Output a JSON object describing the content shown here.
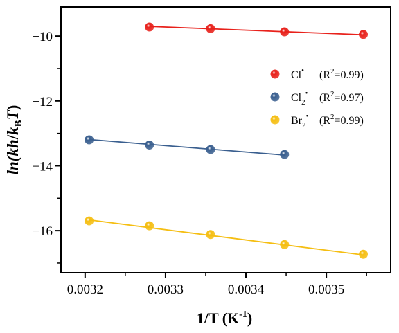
{
  "chart_data": {
    "type": "scatter",
    "xlabel": "1/T (K",
    "xlabel_sup": "-1",
    "xlabel_close": ")",
    "ylabel_parts": {
      "ln": "ln(",
      "kh": "kh",
      "slash": "/",
      "k": "k",
      "k_sub": "B",
      "T": "T",
      "close": ")"
    },
    "xlim": [
      0.00317,
      0.00358
    ],
    "ylim": [
      -17.3,
      -9.1
    ],
    "xticks": [
      0.0032,
      0.0033,
      0.0034,
      0.0035
    ],
    "xtick_labels": [
      "0.0032",
      "0.0033",
      "0.0034",
      "0.0035"
    ],
    "yticks": [
      -10,
      -12,
      -14,
      -16
    ],
    "ytick_labels": [
      "−10",
      "−12",
      "−14",
      "−16"
    ],
    "grid": false,
    "legend_position": "right",
    "series": [
      {
        "name": "Cl•",
        "label_base": "Cl",
        "label_sub": "",
        "label_sup": "•",
        "r2_label": "(R",
        "r2_sup": "2",
        "r2_value": "=0.99)",
        "color": "#e8211b",
        "x": [
          0.00328,
          0.003356,
          0.003448,
          0.003546
        ],
        "y": [
          -9.72,
          -9.77,
          -9.87,
          -9.95
        ],
        "fit": [
          [
            0.00328,
            -9.7
          ],
          [
            0.003546,
            -9.96
          ]
        ]
      },
      {
        "name": "Cl2•−",
        "label_base": "Cl",
        "label_sub": "2",
        "label_sup": "•−",
        "r2_label": "(R",
        "r2_sup": "2",
        "r2_value": "=0.97)",
        "color": "#3a5f8f",
        "x": [
          0.003205,
          0.00328,
          0.003356,
          0.003448
        ],
        "y": [
          -13.2,
          -13.36,
          -13.5,
          -13.65
        ],
        "fit": [
          [
            0.003205,
            -13.19
          ],
          [
            0.003448,
            -13.67
          ]
        ]
      },
      {
        "name": "Br2•−",
        "label_base": "Br",
        "label_sub": "2",
        "label_sup": "•−",
        "r2_label": "(R",
        "r2_sup": "2",
        "r2_value": "=0.99)",
        "color": "#f5be12",
        "x": [
          0.003205,
          0.00328,
          0.003356,
          0.003448,
          0.003546
        ],
        "y": [
          -15.7,
          -15.85,
          -16.12,
          -16.43,
          -16.73
        ],
        "fit": [
          [
            0.003205,
            -15.67
          ],
          [
            0.003546,
            -16.75
          ]
        ]
      }
    ]
  }
}
